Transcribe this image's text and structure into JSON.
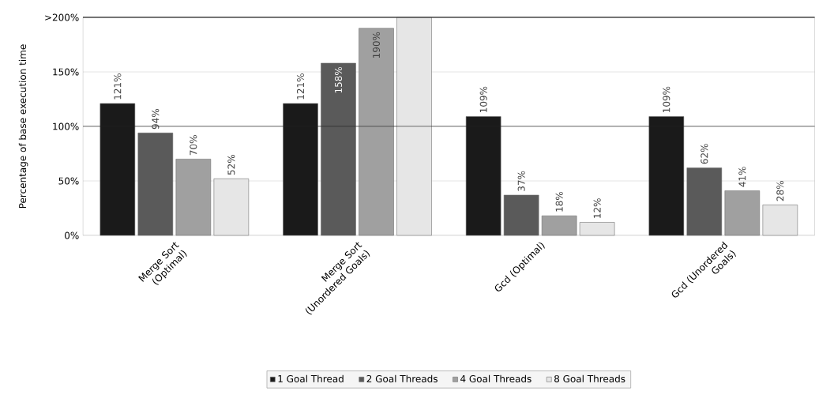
{
  "chart_data": {
    "type": "bar",
    "ylabel": "Percentage of base execution time",
    "categories": [
      "Merge Sort (Optimal)",
      "Merge Sort (Unordered Goals)",
      "Gcd (Optimal)",
      "Gcd (Unordered Goals)"
    ],
    "series": [
      {
        "name": "1 Goal Thread",
        "color": "#1a1a1a",
        "values": [
          121,
          121,
          109,
          109
        ],
        "value_labels": [
          "121%",
          "121%",
          "109%",
          "109%"
        ]
      },
      {
        "name": "2 Goal Threads",
        "color": "#5a5a5a",
        "values": [
          94,
          158,
          37,
          62
        ],
        "value_labels": [
          "94%",
          "158%",
          "37%",
          "62%"
        ]
      },
      {
        "name": "4 Goal Threads",
        "color": "#a0a0a0",
        "values": [
          70,
          190,
          18,
          41
        ],
        "value_labels": [
          "70%",
          "190%",
          "18%",
          "41%"
        ]
      },
      {
        "name": "8 Goal Threads",
        "color": "#e6e6e6",
        "values": [
          52,
          200,
          12,
          28
        ],
        "value_labels": [
          "52%",
          null,
          "12%",
          "28%"
        ]
      }
    ],
    "ylim": [
      0,
      200
    ],
    "yticks": [
      {
        "value": 0,
        "label": "0%"
      },
      {
        "value": 50,
        "label": "50%"
      },
      {
        "value": 100,
        "label": "100%"
      },
      {
        "value": 150,
        "label": "150%"
      },
      {
        "value": 200,
        "label": ">200%"
      }
    ],
    "ref_lines": [
      {
        "axis": "y",
        "value": 100,
        "color": "#202020"
      }
    ],
    "grid": "y",
    "legend": "bottom"
  }
}
